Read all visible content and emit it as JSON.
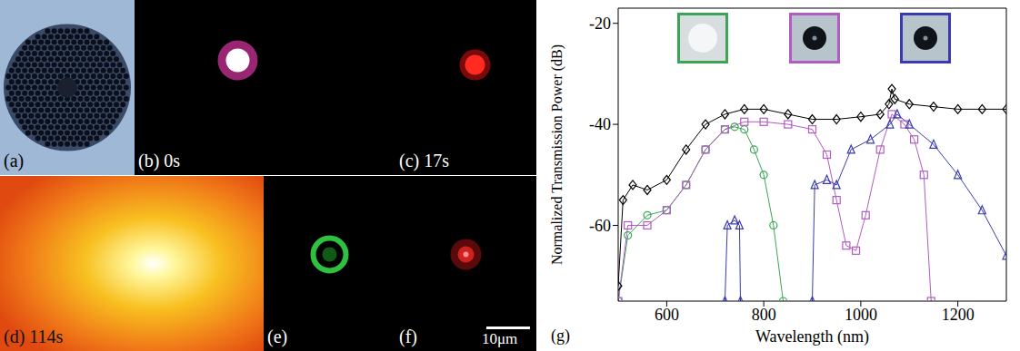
{
  "images": [
    {
      "label": "(a)"
    },
    {
      "label": "(b) 0s"
    },
    {
      "label": "(c) 17s"
    },
    {
      "label": "(d) 114s"
    },
    {
      "label": "(e)"
    },
    {
      "label": "(f)"
    }
  ],
  "scale_bar": "10μm",
  "chart_data": {
    "type": "line",
    "panel_label": "(g)",
    "x_label": "Wavelength (nm)",
    "y_label": "Normalized Transmission Power (dB)",
    "xlim": [
      500,
      1300
    ],
    "xticks": [
      600,
      800,
      1000,
      1200
    ],
    "ylim": [
      -75,
      -17
    ],
    "yticks": [
      -20,
      -40,
      -60
    ],
    "series": [
      {
        "color": "#000000",
        "marker": "diamond",
        "x": [
          500,
          510,
          530,
          560,
          600,
          640,
          680,
          720,
          760,
          800,
          850,
          900,
          950,
          1000,
          1040,
          1058,
          1064,
          1070,
          1100,
          1150,
          1200,
          1250,
          1300
        ],
        "values": [
          -72,
          -55,
          -52,
          -53,
          -51,
          -45,
          -40,
          -38,
          -37,
          -37,
          -38,
          -39,
          -39,
          -38.5,
          -38,
          -36,
          -33,
          -35,
          -36,
          -36.5,
          -37,
          -37,
          -37
        ]
      },
      {
        "color": "#3aa655",
        "marker": "circle",
        "x": [
          500,
          520,
          560,
          600,
          640,
          680,
          720,
          740,
          760,
          780,
          800,
          820,
          840
        ],
        "values": [
          -75,
          -62,
          -58,
          -57,
          -52,
          -45,
          -41,
          -40.5,
          -41,
          -45,
          -50,
          -60,
          -75
        ]
      },
      {
        "color": "#b05cc0",
        "marker": "square",
        "x": [
          500,
          520,
          560,
          600,
          640,
          680,
          720,
          760,
          800,
          850,
          900,
          930,
          950,
          970,
          990,
          1010,
          1040,
          1064,
          1090,
          1110,
          1130,
          1145
        ],
        "values": [
          -75,
          -60,
          -60,
          -57,
          -52,
          -45,
          -41,
          -39.5,
          -39.5,
          -40,
          -41,
          -46,
          -55,
          -64,
          -65,
          -58,
          -45,
          -38,
          -40,
          -43,
          -50,
          -75
        ]
      },
      {
        "color": "#3b3bb0",
        "marker": "triangle",
        "x": [
          720,
          725,
          740,
          750,
          752,
          800,
          900,
          905,
          930,
          950,
          980,
          1020,
          1060,
          1075,
          1100,
          1150,
          1200,
          1250,
          1300
        ],
        "values": [
          -75,
          -60,
          -59,
          -60,
          -75,
          null,
          -75,
          -52,
          -51,
          -52,
          -45,
          -43,
          -40,
          -38,
          -40,
          -44,
          -50,
          -57,
          -66
        ]
      }
    ]
  }
}
